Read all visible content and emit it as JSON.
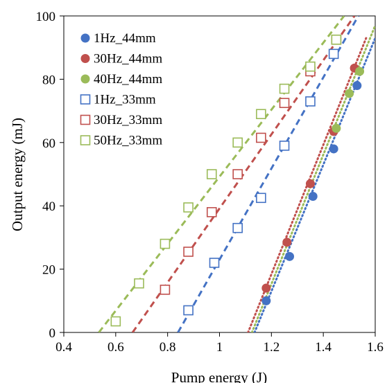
{
  "chart_data": {
    "type": "scatter",
    "title": "",
    "xlabel": "Pump energy (J)",
    "ylabel": "Output energy (mJ)",
    "xlim": [
      0.4,
      1.6
    ],
    "ylim": [
      0,
      100
    ],
    "xticks": [
      "0.4",
      "0.6",
      "0.8",
      "1",
      "1.2",
      "1.4",
      "1.6"
    ],
    "yticks": [
      "0",
      "20",
      "40",
      "60",
      "80",
      "100"
    ],
    "grid": false,
    "legend_position": "top-left",
    "series": [
      {
        "name": "1Hz_44mm",
        "marker": "filled-circle",
        "color": "#4472C4",
        "x": [
          1.18,
          1.27,
          1.36,
          1.44,
          1.53
        ],
        "y": [
          10,
          24,
          43,
          58,
          78
        ],
        "fit": {
          "style": "dotted",
          "x": [
            1.135,
            1.6
          ],
          "y": [
            0,
            93
          ]
        }
      },
      {
        "name": "30Hz_44mm",
        "marker": "filled-circle",
        "color": "#C0504D",
        "x": [
          1.18,
          1.26,
          1.35,
          1.44,
          1.52
        ],
        "y": [
          14,
          28.5,
          47,
          63.5,
          83.5
        ],
        "fit": {
          "style": "dotted",
          "x": [
            1.11,
            1.565
          ],
          "y": [
            0,
            93
          ]
        }
      },
      {
        "name": "40Hz_44mm",
        "marker": "filled-circle",
        "color": "#9BBB59",
        "x": [
          1.45,
          1.5,
          1.54
        ],
        "y": [
          64.5,
          75.5,
          82.5
        ],
        "fit": {
          "style": "dotted",
          "x": [
            1.125,
            1.6
          ],
          "y": [
            0,
            97
          ]
        }
      },
      {
        "name": "1Hz_33mm",
        "marker": "open-square",
        "color": "#4472C4",
        "x": [
          0.88,
          0.98,
          1.07,
          1.16,
          1.25,
          1.35,
          1.44
        ],
        "y": [
          7,
          22,
          33,
          42.5,
          59,
          73,
          88
        ],
        "fit": {
          "style": "dashed",
          "x": [
            0.84,
            1.535
          ],
          "y": [
            0,
            100
          ]
        }
      },
      {
        "name": "30Hz_33mm",
        "marker": "open-square",
        "color": "#C0504D",
        "x": [
          0.79,
          0.88,
          0.97,
          1.07,
          1.16,
          1.25,
          1.35,
          1.45
        ],
        "y": [
          13.5,
          25.5,
          38,
          50,
          61.5,
          72.5,
          82.5,
          92.5
        ],
        "fit": {
          "style": "dashed",
          "x": [
            0.665,
            1.52
          ],
          "y": [
            0,
            100
          ]
        }
      },
      {
        "name": "50Hz_33mm",
        "marker": "open-square",
        "color": "#9BBB59",
        "x": [
          0.6,
          0.69,
          0.79,
          0.88,
          0.97,
          1.07,
          1.16,
          1.25,
          1.35,
          1.45
        ],
        "y": [
          3.5,
          15.5,
          28,
          39.5,
          50,
          60,
          69,
          77,
          84,
          92.5
        ],
        "fit": {
          "style": "dashed",
          "x": [
            0.535,
            1.48
          ],
          "y": [
            0,
            100
          ]
        }
      }
    ]
  }
}
